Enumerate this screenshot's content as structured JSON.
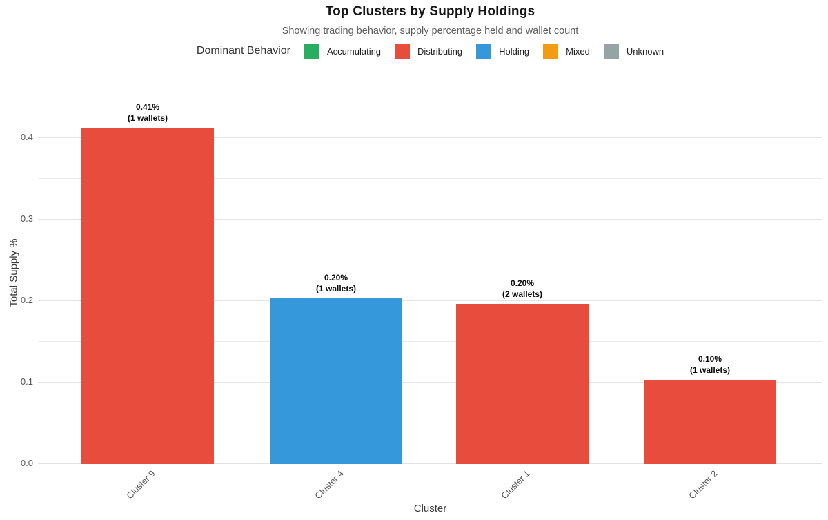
{
  "legend": {
    "title": "Dominant Behavior",
    "items": [
      {
        "label": "Accumulating",
        "color": "#27ae60"
      },
      {
        "label": "Distributing",
        "color": "#e74c3c"
      },
      {
        "label": "Holding",
        "color": "#3498db"
      },
      {
        "label": "Mixed",
        "color": "#f39c12"
      },
      {
        "label": "Unknown",
        "color": "#95a5a6"
      }
    ]
  },
  "chart_data": {
    "type": "bar",
    "title": "Top Clusters by Supply Holdings",
    "subtitle": "Showing trading behavior, supply percentage held and wallet count",
    "xlabel": "Cluster",
    "ylabel": "Total Supply %",
    "categories": [
      "Cluster 9",
      "Cluster 4",
      "Cluster 1",
      "Cluster 2"
    ],
    "values": [
      0.413,
      0.203,
      0.197,
      0.103
    ],
    "bars": [
      {
        "category": "Cluster 9",
        "value": 0.413,
        "value_label": "0.41%",
        "wallets_label": "(1 wallets)",
        "wallet_count": 1,
        "behavior": "Distributing"
      },
      {
        "category": "Cluster 4",
        "value": 0.203,
        "value_label": "0.20%",
        "wallets_label": "(1 wallets)",
        "wallet_count": 1,
        "behavior": "Holding"
      },
      {
        "category": "Cluster 1",
        "value": 0.197,
        "value_label": "0.20%",
        "wallets_label": "(2 wallets)",
        "wallet_count": 2,
        "behavior": "Distributing"
      },
      {
        "category": "Cluster 2",
        "value": 0.103,
        "value_label": "0.10%",
        "wallets_label": "(1 wallets)",
        "wallet_count": 1,
        "behavior": "Distributing"
      }
    ],
    "yticks": [
      "0.0",
      "0.1",
      "0.2",
      "0.3",
      "0.4"
    ],
    "ytick_values": [
      0,
      0.1,
      0.2,
      0.3,
      0.4
    ],
    "ylim": [
      0,
      0.459
    ],
    "grid": true,
    "grid_step": 0.05,
    "legend_position": "top"
  }
}
